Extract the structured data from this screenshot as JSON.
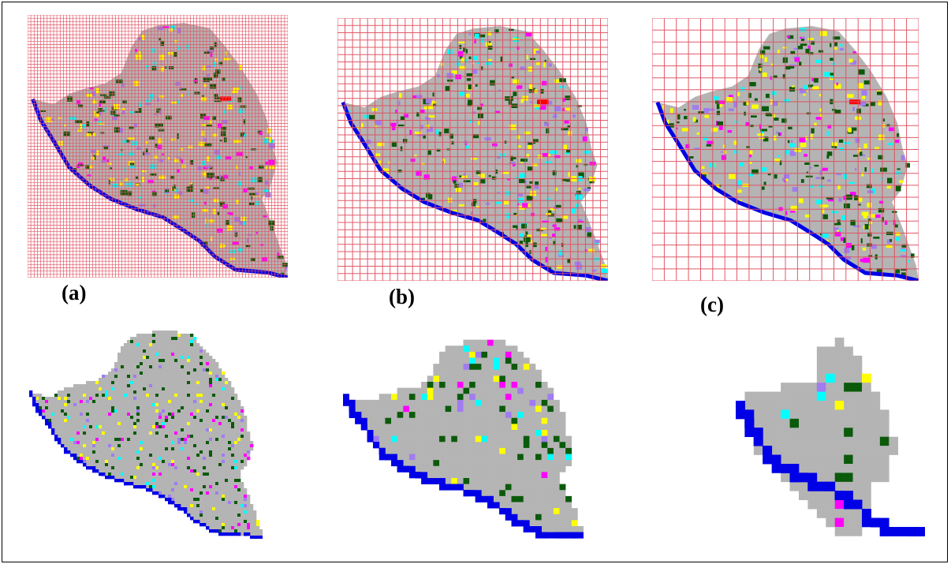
{
  "figure": {
    "panels": [
      {
        "label": "(a)",
        "grid_lines": 80
      },
      {
        "label": "(b)",
        "grid_lines": 36
      },
      {
        "label": "(c)",
        "grid_lines": 22
      }
    ],
    "colors": {
      "background_map": "#b4b4b4",
      "grid": "#e05060",
      "water": "#0000e6",
      "forest": "#0a5a0a",
      "yellow": "#ffff00",
      "magenta": "#ff00ff",
      "violet": "#a07cf0",
      "cyan": "#00ffff",
      "red": "#ff0000",
      "tan": "#d2b48c"
    }
  }
}
